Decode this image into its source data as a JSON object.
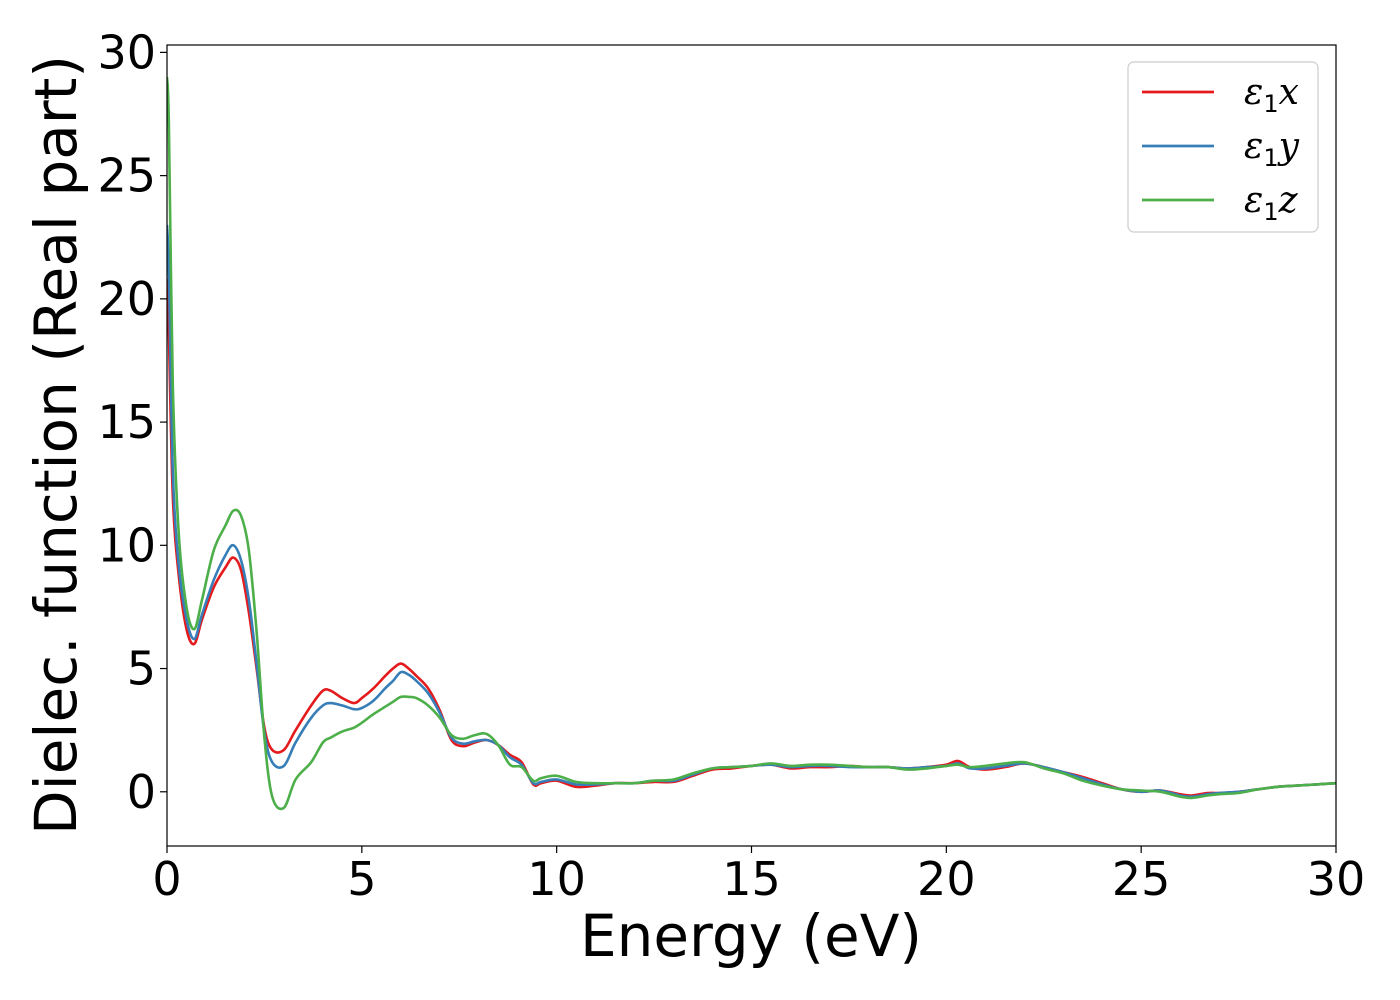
{
  "chart_data": {
    "type": "line",
    "xlabel": "Energy (eV)",
    "ylabel": "Dielec. function (Real part)",
    "xlim": [
      0,
      30
    ],
    "ylim": [
      -2.2,
      30.3
    ],
    "xticks": [
      0,
      5,
      10,
      15,
      20,
      25,
      30
    ],
    "yticks": [
      0,
      5,
      10,
      15,
      20,
      25,
      30
    ],
    "grid": false,
    "legend_position": "top-right",
    "series": [
      {
        "name": "ε₁x",
        "legend_main": "ε",
        "legend_sub": "1",
        "legend_var": "x",
        "color": "#e41a1c",
        "x": [
          0,
          0.05,
          0.15,
          0.3,
          0.5,
          0.7,
          0.9,
          1.2,
          1.5,
          1.7,
          1.9,
          2.1,
          2.3,
          2.5,
          2.7,
          3.0,
          3.3,
          3.7,
          4.0,
          4.2,
          4.5,
          4.8,
          5.0,
          5.3,
          5.6,
          5.8,
          6.0,
          6.2,
          6.4,
          6.7,
          7.0,
          7.3,
          7.6,
          7.9,
          8.2,
          8.5,
          8.8,
          9.1,
          9.4,
          9.6,
          10.0,
          10.5,
          11.0,
          11.5,
          12.0,
          12.5,
          13.0,
          13.5,
          14.0,
          14.5,
          15.0,
          15.5,
          16.0,
          16.5,
          17.0,
          17.5,
          18.0,
          18.5,
          19.0,
          19.5,
          20.0,
          20.3,
          20.6,
          21.0,
          21.5,
          22.0,
          22.5,
          23.0,
          23.5,
          24.0,
          24.5,
          25.0,
          25.5,
          26.0,
          26.3,
          26.7,
          27.0,
          27.5,
          28.0,
          28.5,
          29.0,
          29.5,
          30.0
        ],
        "y": [
          20.8,
          18.5,
          12.0,
          8.8,
          6.6,
          6.0,
          7.0,
          8.3,
          9.1,
          9.5,
          9.0,
          7.3,
          5.0,
          2.6,
          1.7,
          1.7,
          2.5,
          3.5,
          4.1,
          4.1,
          3.8,
          3.6,
          3.8,
          4.2,
          4.7,
          5.0,
          5.2,
          5.0,
          4.7,
          4.2,
          3.3,
          2.1,
          1.85,
          2.0,
          2.1,
          1.9,
          1.5,
          1.2,
          0.3,
          0.35,
          0.45,
          0.2,
          0.25,
          0.35,
          0.35,
          0.4,
          0.4,
          0.65,
          0.9,
          0.95,
          1.05,
          1.1,
          0.95,
          1.0,
          1.0,
          1.05,
          1.0,
          1.0,
          0.95,
          1.0,
          1.1,
          1.25,
          1.0,
          0.9,
          1.0,
          1.15,
          1.0,
          0.8,
          0.6,
          0.35,
          0.1,
          0.0,
          0.05,
          -0.1,
          -0.15,
          -0.05,
          -0.05,
          0.0,
          0.1,
          0.2,
          0.25,
          0.3,
          0.35
        ]
      },
      {
        "name": "ε₁y",
        "legend_main": "ε",
        "legend_sub": "1",
        "legend_var": "y",
        "color": "#377eb8",
        "x": [
          0,
          0.05,
          0.15,
          0.3,
          0.5,
          0.7,
          0.9,
          1.2,
          1.5,
          1.7,
          1.9,
          2.1,
          2.3,
          2.5,
          2.7,
          3.0,
          3.3,
          3.7,
          4.0,
          4.2,
          4.5,
          4.8,
          5.0,
          5.3,
          5.6,
          5.8,
          6.0,
          6.2,
          6.4,
          6.7,
          7.0,
          7.3,
          7.6,
          7.9,
          8.2,
          8.5,
          8.8,
          9.1,
          9.4,
          9.6,
          10.0,
          10.5,
          11.0,
          11.5,
          12.0,
          12.5,
          13.0,
          13.5,
          14.0,
          14.5,
          15.0,
          15.5,
          16.0,
          16.5,
          17.0,
          17.5,
          18.0,
          18.5,
          19.0,
          19.5,
          20.0,
          20.3,
          20.6,
          21.0,
          21.5,
          22.0,
          22.5,
          23.0,
          23.5,
          24.0,
          24.5,
          25.0,
          25.5,
          26.0,
          26.3,
          26.7,
          27.0,
          27.5,
          28.0,
          28.5,
          29.0,
          29.5,
          30.0
        ],
        "y": [
          23.0,
          21.0,
          13.0,
          9.2,
          7.0,
          6.2,
          7.2,
          8.6,
          9.6,
          10.0,
          9.4,
          7.8,
          5.2,
          2.4,
          1.2,
          1.05,
          2.0,
          3.0,
          3.5,
          3.6,
          3.5,
          3.35,
          3.4,
          3.7,
          4.2,
          4.5,
          4.85,
          4.75,
          4.5,
          4.0,
          3.2,
          2.2,
          1.95,
          2.05,
          2.1,
          1.9,
          1.4,
          1.1,
          0.35,
          0.4,
          0.5,
          0.3,
          0.3,
          0.35,
          0.35,
          0.45,
          0.45,
          0.7,
          0.95,
          1.0,
          1.05,
          1.1,
          1.0,
          1.05,
          1.05,
          1.0,
          1.0,
          1.0,
          0.95,
          1.0,
          1.05,
          1.15,
          0.95,
          0.95,
          1.05,
          1.15,
          1.0,
          0.8,
          0.55,
          0.3,
          0.1,
          0.0,
          0.05,
          -0.15,
          -0.2,
          -0.1,
          -0.05,
          0.0,
          0.1,
          0.2,
          0.25,
          0.3,
          0.35
        ]
      },
      {
        "name": "ε₁z",
        "legend_main": "ε",
        "legend_sub": "1",
        "legend_var": "z",
        "color": "#4daf4a",
        "x": [
          0,
          0.05,
          0.15,
          0.3,
          0.5,
          0.7,
          0.9,
          1.2,
          1.5,
          1.7,
          1.9,
          2.1,
          2.3,
          2.5,
          2.7,
          3.0,
          3.3,
          3.7,
          4.0,
          4.2,
          4.5,
          4.8,
          5.0,
          5.3,
          5.6,
          5.8,
          6.0,
          6.2,
          6.4,
          6.7,
          7.0,
          7.3,
          7.6,
          7.9,
          8.2,
          8.5,
          8.8,
          9.1,
          9.4,
          9.6,
          10.0,
          10.5,
          11.0,
          11.5,
          12.0,
          12.5,
          13.0,
          13.5,
          14.0,
          14.5,
          15.0,
          15.5,
          16.0,
          16.5,
          17.0,
          17.5,
          18.0,
          18.5,
          19.0,
          19.5,
          20.0,
          20.3,
          20.6,
          21.0,
          21.5,
          22.0,
          22.5,
          23.0,
          23.5,
          24.0,
          24.5,
          25.0,
          25.5,
          26.0,
          26.3,
          26.7,
          27.0,
          27.5,
          28.0,
          28.5,
          29.0,
          29.5,
          30.0
        ],
        "y": [
          29.0,
          27.0,
          16.5,
          10.5,
          7.5,
          6.6,
          7.8,
          9.8,
          10.8,
          11.4,
          11.2,
          9.8,
          6.5,
          2.2,
          -0.2,
          -0.65,
          0.5,
          1.2,
          2.0,
          2.2,
          2.45,
          2.6,
          2.8,
          3.15,
          3.45,
          3.65,
          3.85,
          3.85,
          3.8,
          3.5,
          3.0,
          2.3,
          2.15,
          2.3,
          2.35,
          1.9,
          1.1,
          1.0,
          0.45,
          0.55,
          0.65,
          0.4,
          0.35,
          0.35,
          0.35,
          0.45,
          0.5,
          0.75,
          0.95,
          1.0,
          1.05,
          1.15,
          1.05,
          1.1,
          1.1,
          1.05,
          1.0,
          1.0,
          0.9,
          0.95,
          1.05,
          1.1,
          1.0,
          1.05,
          1.15,
          1.2,
          0.95,
          0.75,
          0.45,
          0.25,
          0.1,
          0.05,
          0.0,
          -0.2,
          -0.25,
          -0.15,
          -0.1,
          -0.05,
          0.1,
          0.2,
          0.25,
          0.3,
          0.35
        ]
      }
    ]
  }
}
